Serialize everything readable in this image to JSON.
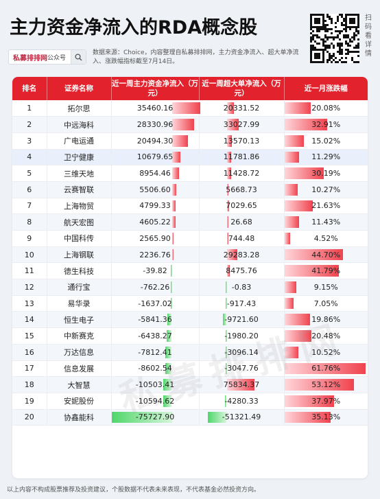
{
  "title": "主力资金净流入的RDA概念股",
  "search": {
    "brand": "私募排排网",
    "brand_sub": "公众号"
  },
  "source_text": "数据来源：Choice，内容整理自私募排排网，主力资金净流入、超大单净流入、涨跌幅指标截至7月14日。",
  "scan_text": "扫码看详情",
  "watermark": "私募排排网",
  "footer": "以上内容不构成股票推荐及投资建议，个股数据不代表未来表现，不代表基金必然投资方向。",
  "colors": {
    "header_red": "#e2222c",
    "positive": "#f0434e",
    "negative": "#4fd66a"
  },
  "table": {
    "headers": {
      "rank": "排名",
      "name": "证券名称",
      "main_flow": "近一周主力资金净流入（万元）",
      "super_flow": "近一周超大单净流入（万元）",
      "change": "近一月涨跌幅"
    },
    "rows": [
      {
        "rank": "1",
        "name": "拓尔思",
        "main": "35460.16",
        "super": "20331.52",
        "change": "20.08%",
        "main_v": 35460.16,
        "super_v": 20331.52,
        "change_v": 20.08
      },
      {
        "rank": "2",
        "name": "中远海科",
        "main": "28330.96",
        "super": "33027.99",
        "change": "32.91%",
        "main_v": 28330.96,
        "super_v": 33027.99,
        "change_v": 32.91
      },
      {
        "rank": "3",
        "name": "广电运通",
        "main": "20494.30",
        "super": "13570.13",
        "change": "15.02%",
        "main_v": 20494.3,
        "super_v": 13570.13,
        "change_v": 15.02
      },
      {
        "rank": "4",
        "name": "卫宁健康",
        "main": "10679.65",
        "super": "11781.86",
        "change": "11.29%",
        "main_v": 10679.65,
        "super_v": 11781.86,
        "change_v": 11.29
      },
      {
        "rank": "5",
        "name": "三维天地",
        "main": "8954.46",
        "super": "11428.72",
        "change": "30.19%",
        "main_v": 8954.46,
        "super_v": 11428.72,
        "change_v": 30.19
      },
      {
        "rank": "6",
        "name": "云赛智联",
        "main": "5506.60",
        "super": "5668.73",
        "change": "10.27%",
        "main_v": 5506.6,
        "super_v": 5668.73,
        "change_v": 10.27
      },
      {
        "rank": "7",
        "name": "上海物贸",
        "main": "4799.33",
        "super": "7029.65",
        "change": "21.63%",
        "main_v": 4799.33,
        "super_v": 7029.65,
        "change_v": 21.63
      },
      {
        "rank": "8",
        "name": "航天宏图",
        "main": "4605.22",
        "super": "26.68",
        "change": "11.43%",
        "main_v": 4605.22,
        "super_v": 26.68,
        "change_v": 11.43
      },
      {
        "rank": "9",
        "name": "中国科传",
        "main": "2565.90",
        "super": "744.48",
        "change": "4.52%",
        "main_v": 2565.9,
        "super_v": 744.48,
        "change_v": 4.52
      },
      {
        "rank": "10",
        "name": "上海钢联",
        "main": "2236.76",
        "super": "29283.28",
        "change": "44.70%",
        "main_v": 2236.76,
        "super_v": 29283.28,
        "change_v": 44.7
      },
      {
        "rank": "11",
        "name": "德生科技",
        "main": "-39.82",
        "super": "8475.76",
        "change": "41.79%",
        "main_v": -39.82,
        "super_v": 8475.76,
        "change_v": 41.79
      },
      {
        "rank": "12",
        "name": "通行宝",
        "main": "-762.26",
        "super": "-0.83",
        "change": "9.15%",
        "main_v": -762.26,
        "super_v": -0.83,
        "change_v": 9.15
      },
      {
        "rank": "13",
        "name": "易华录",
        "main": "-1637.02",
        "super": "-917.43",
        "change": "7.05%",
        "main_v": -1637.02,
        "super_v": -917.43,
        "change_v": 7.05
      },
      {
        "rank": "14",
        "name": "恒生电子",
        "main": "-5841.36",
        "super": "-9721.60",
        "change": "19.86%",
        "main_v": -5841.36,
        "super_v": -9721.6,
        "change_v": 19.86
      },
      {
        "rank": "15",
        "name": "中新赛克",
        "main": "-6438.27",
        "super": "-1980.20",
        "change": "20.48%",
        "main_v": -6438.27,
        "super_v": -1980.2,
        "change_v": 20.48
      },
      {
        "rank": "16",
        "name": "万达信息",
        "main": "-7812.41",
        "super": "-3096.14",
        "change": "10.52%",
        "main_v": -7812.41,
        "super_v": -3096.14,
        "change_v": 10.52
      },
      {
        "rank": "17",
        "name": "信息发展",
        "main": "-8602.54",
        "super": "-3047.76",
        "change": "61.76%",
        "main_v": -8602.54,
        "super_v": -3047.76,
        "change_v": 61.76
      },
      {
        "rank": "18",
        "name": "大智慧",
        "main": "-10503.41",
        "super": "75834.37",
        "change": "53.12%",
        "main_v": -10503.41,
        "super_v": 75834.37,
        "change_v": 53.12
      },
      {
        "rank": "19",
        "name": "安妮股份",
        "main": "-10594.62",
        "super": "-4280.33",
        "change": "37.97%",
        "main_v": -10594.62,
        "super_v": -4280.33,
        "change_v": 37.97
      },
      {
        "rank": "20",
        "name": "协鑫能科",
        "main": "-75727.90",
        "super": "-51321.49",
        "change": "35.13%",
        "main_v": -75727.9,
        "super_v": -51321.49,
        "change_v": 35.13
      }
    ]
  }
}
